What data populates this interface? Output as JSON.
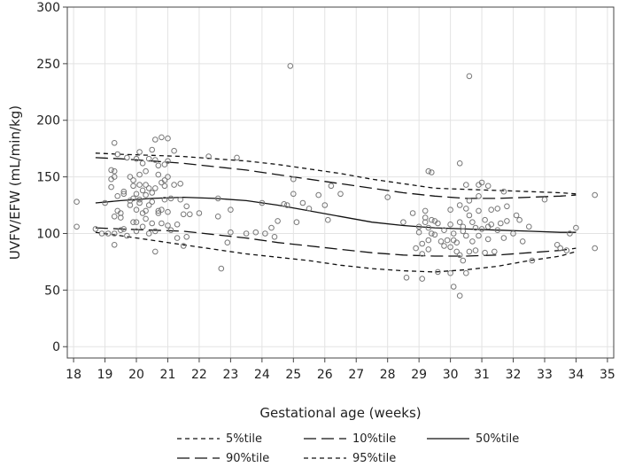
{
  "chart_data": {
    "type": "scatter",
    "title": "",
    "xlabel": "Gestational age (weeks)",
    "ylabel": "UVFV/EFW (mL/min/kg)",
    "xlim": [
      17.8,
      35.2
    ],
    "ylim": [
      -10,
      300
    ],
    "xticks": [
      18,
      19,
      20,
      21,
      22,
      23,
      24,
      25,
      26,
      27,
      28,
      29,
      30,
      31,
      32,
      33,
      34,
      35
    ],
    "yticks": [
      0,
      50,
      100,
      150,
      200,
      250,
      300
    ],
    "grid": true,
    "legend": [
      {
        "label": "5%tile",
        "dash": "short"
      },
      {
        "label": "10%tile",
        "dash": "long"
      },
      {
        "label": "50%tile",
        "dash": "solid"
      },
      {
        "label": "90%tile",
        "dash": "long"
      },
      {
        "label": "95%tile",
        "dash": "short"
      }
    ],
    "centile_curves": [
      {
        "name": "5%tile",
        "dash": "short",
        "x": [
          18.7,
          19.5,
          20.5,
          21.5,
          22.5,
          23.5,
          24.5,
          25.5,
          26.5,
          27.5,
          28.5,
          29.5,
          30.5,
          31.5,
          32.5,
          33.5,
          34.0
        ],
        "y": [
          101,
          98,
          94,
          90,
          86,
          82,
          79,
          76,
          72,
          69,
          67,
          66,
          68,
          71,
          76,
          80,
          84
        ]
      },
      {
        "name": "10%tile",
        "dash": "long",
        "x": [
          18.7,
          19.5,
          20.5,
          21.5,
          22.5,
          23.5,
          24.5,
          25.5,
          26.5,
          27.5,
          28.5,
          29.5,
          30.5,
          31.5,
          32.5,
          33.5,
          34.0
        ],
        "y": [
          105,
          104,
          103,
          102,
          99,
          96,
          92,
          89,
          86,
          83,
          81,
          80,
          80,
          81,
          83,
          85,
          87
        ]
      },
      {
        "name": "50%tile",
        "dash": "solid",
        "x": [
          18.7,
          19.5,
          20.5,
          21.5,
          22.5,
          23.5,
          24.5,
          25.5,
          26.5,
          27.5,
          28.5,
          29.5,
          30.5,
          31.5,
          32.5,
          33.5,
          34.0
        ],
        "y": [
          127,
          129,
          131,
          132,
          131,
          129,
          125,
          120,
          115,
          110,
          107,
          105,
          104,
          103,
          102,
          101,
          101
        ]
      },
      {
        "name": "90%tile",
        "dash": "long",
        "x": [
          18.7,
          19.5,
          20.5,
          21.5,
          22.5,
          23.5,
          24.5,
          25.5,
          26.5,
          27.5,
          28.5,
          29.5,
          30.5,
          31.5,
          32.5,
          33.5,
          34.0
        ],
        "y": [
          167,
          166,
          164,
          162,
          159,
          156,
          152,
          148,
          144,
          140,
          136,
          133,
          131,
          131,
          132,
          133,
          134
        ]
      },
      {
        "name": "95%tile",
        "dash": "short",
        "x": [
          18.7,
          19.5,
          20.5,
          21.5,
          22.5,
          23.5,
          24.5,
          25.5,
          26.5,
          27.5,
          28.5,
          29.5,
          30.5,
          31.5,
          32.5,
          33.5,
          34.0
        ],
        "y": [
          171,
          170,
          169,
          168,
          166,
          164,
          161,
          157,
          153,
          148,
          144,
          140,
          139,
          138,
          137,
          136,
          135
        ]
      }
    ],
    "points": [
      [
        18.1,
        128
      ],
      [
        18.1,
        106
      ],
      [
        18.7,
        104
      ],
      [
        18.9,
        100
      ],
      [
        19.0,
        127
      ],
      [
        19.1,
        100
      ],
      [
        19.2,
        148
      ],
      [
        19.2,
        156
      ],
      [
        19.2,
        141
      ],
      [
        19.3,
        100
      ],
      [
        19.3,
        180
      ],
      [
        19.3,
        155
      ],
      [
        19.3,
        150
      ],
      [
        19.3,
        115
      ],
      [
        19.3,
        90
      ],
      [
        19.4,
        133
      ],
      [
        19.4,
        170
      ],
      [
        19.4,
        120
      ],
      [
        19.5,
        114
      ],
      [
        19.5,
        118
      ],
      [
        19.5,
        103
      ],
      [
        19.6,
        135
      ],
      [
        19.6,
        137
      ],
      [
        19.6,
        104
      ],
      [
        19.7,
        167
      ],
      [
        19.7,
        98
      ],
      [
        19.8,
        150
      ],
      [
        19.8,
        129
      ],
      [
        19.8,
        125
      ],
      [
        19.9,
        147
      ],
      [
        19.9,
        142
      ],
      [
        19.9,
        110
      ],
      [
        19.9,
        131
      ],
      [
        20.0,
        102
      ],
      [
        20.0,
        121
      ],
      [
        20.0,
        166
      ],
      [
        20.0,
        110
      ],
      [
        20.0,
        135
      ],
      [
        20.1,
        172
      ],
      [
        20.1,
        143
      ],
      [
        20.1,
        152
      ],
      [
        20.1,
        127
      ],
      [
        20.1,
        130
      ],
      [
        20.2,
        162
      ],
      [
        20.2,
        138
      ],
      [
        20.2,
        118
      ],
      [
        20.2,
        106
      ],
      [
        20.3,
        155
      ],
      [
        20.3,
        113
      ],
      [
        20.3,
        143
      ],
      [
        20.3,
        120
      ],
      [
        20.3,
        134
      ],
      [
        20.4,
        125
      ],
      [
        20.4,
        140
      ],
      [
        20.4,
        166
      ],
      [
        20.4,
        100
      ],
      [
        20.5,
        109
      ],
      [
        20.5,
        174
      ],
      [
        20.5,
        128
      ],
      [
        20.5,
        136
      ],
      [
        20.6,
        183
      ],
      [
        20.6,
        84
      ],
      [
        20.6,
        102
      ],
      [
        20.6,
        140
      ],
      [
        20.6,
        165
      ],
      [
        20.7,
        160
      ],
      [
        20.7,
        152
      ],
      [
        20.7,
        120
      ],
      [
        20.7,
        118
      ],
      [
        20.8,
        185
      ],
      [
        20.8,
        109
      ],
      [
        20.8,
        145
      ],
      [
        20.8,
        121
      ],
      [
        20.9,
        147
      ],
      [
        20.9,
        142
      ],
      [
        20.9,
        130
      ],
      [
        20.9,
        161
      ],
      [
        21.0,
        184
      ],
      [
        21.0,
        164
      ],
      [
        21.0,
        150
      ],
      [
        21.0,
        119
      ],
      [
        21.0,
        107
      ],
      [
        21.1,
        103
      ],
      [
        21.1,
        131
      ],
      [
        21.2,
        173
      ],
      [
        21.2,
        143
      ],
      [
        21.3,
        108
      ],
      [
        21.3,
        96
      ],
      [
        21.4,
        144
      ],
      [
        21.4,
        130
      ],
      [
        21.5,
        89
      ],
      [
        21.5,
        117
      ],
      [
        21.6,
        97
      ],
      [
        21.6,
        124
      ],
      [
        21.7,
        117
      ],
      [
        22.0,
        118
      ],
      [
        22.3,
        168
      ],
      [
        22.6,
        131
      ],
      [
        22.6,
        115
      ],
      [
        22.7,
        69
      ],
      [
        22.9,
        92
      ],
      [
        23.0,
        121
      ],
      [
        23.0,
        101
      ],
      [
        23.2,
        167
      ],
      [
        23.5,
        100
      ],
      [
        23.8,
        101
      ],
      [
        24.0,
        127
      ],
      [
        24.1,
        100
      ],
      [
        24.3,
        105
      ],
      [
        24.4,
        97
      ],
      [
        24.5,
        111
      ],
      [
        24.7,
        126
      ],
      [
        24.8,
        125
      ],
      [
        24.9,
        248
      ],
      [
        25.0,
        135
      ],
      [
        25.0,
        148
      ],
      [
        25.1,
        110
      ],
      [
        25.3,
        127
      ],
      [
        25.5,
        122
      ],
      [
        25.8,
        134
      ],
      [
        26.0,
        125
      ],
      [
        26.1,
        112
      ],
      [
        26.2,
        142
      ],
      [
        26.5,
        135
      ],
      [
        28.0,
        132
      ],
      [
        28.5,
        110
      ],
      [
        28.6,
        61
      ],
      [
        28.8,
        118
      ],
      [
        28.9,
        87
      ],
      [
        29.0,
        101
      ],
      [
        29.0,
        106
      ],
      [
        29.1,
        91
      ],
      [
        29.1,
        60
      ],
      [
        29.1,
        82
      ],
      [
        29.2,
        120
      ],
      [
        29.2,
        114
      ],
      [
        29.2,
        110
      ],
      [
        29.3,
        155
      ],
      [
        29.3,
        105
      ],
      [
        29.3,
        94
      ],
      [
        29.3,
        86
      ],
      [
        29.4,
        154
      ],
      [
        29.4,
        112
      ],
      [
        29.4,
        100
      ],
      [
        29.5,
        111
      ],
      [
        29.5,
        99
      ],
      [
        29.6,
        66
      ],
      [
        29.6,
        109
      ],
      [
        29.7,
        93
      ],
      [
        29.8,
        89
      ],
      [
        29.8,
        103
      ],
      [
        29.9,
        94
      ],
      [
        30.0,
        121
      ],
      [
        30.0,
        108
      ],
      [
        30.0,
        88
      ],
      [
        30.0,
        65
      ],
      [
        30.1,
        53
      ],
      [
        30.1,
        100
      ],
      [
        30.1,
        94
      ],
      [
        30.2,
        92
      ],
      [
        30.2,
        84
      ],
      [
        30.3,
        110
      ],
      [
        30.3,
        81
      ],
      [
        30.3,
        45
      ],
      [
        30.3,
        162
      ],
      [
        30.3,
        125
      ],
      [
        30.4,
        76
      ],
      [
        30.4,
        106
      ],
      [
        30.4,
        102
      ],
      [
        30.5,
        98
      ],
      [
        30.5,
        122
      ],
      [
        30.5,
        143
      ],
      [
        30.5,
        65
      ],
      [
        30.6,
        239
      ],
      [
        30.6,
        129
      ],
      [
        30.6,
        116
      ],
      [
        30.6,
        84
      ],
      [
        30.7,
        110
      ],
      [
        30.7,
        93
      ],
      [
        30.8,
        85
      ],
      [
        30.8,
        105
      ],
      [
        30.9,
        143
      ],
      [
        30.9,
        120
      ],
      [
        30.9,
        98
      ],
      [
        30.9,
        133
      ],
      [
        31.0,
        145
      ],
      [
        31.0,
        104
      ],
      [
        31.1,
        112
      ],
      [
        31.1,
        83
      ],
      [
        31.2,
        95
      ],
      [
        31.2,
        142
      ],
      [
        31.2,
        106
      ],
      [
        31.3,
        121
      ],
      [
        31.3,
        108
      ],
      [
        31.4,
        84
      ],
      [
        31.5,
        122
      ],
      [
        31.5,
        103
      ],
      [
        31.6,
        109
      ],
      [
        31.7,
        137
      ],
      [
        31.7,
        96
      ],
      [
        31.8,
        124
      ],
      [
        31.8,
        111
      ],
      [
        32.0,
        100
      ],
      [
        32.1,
        116
      ],
      [
        32.2,
        112
      ],
      [
        32.3,
        93
      ],
      [
        32.5,
        106
      ],
      [
        32.6,
        76
      ],
      [
        33.0,
        130
      ],
      [
        33.4,
        90
      ],
      [
        33.5,
        87
      ],
      [
        33.7,
        85
      ],
      [
        33.8,
        100
      ],
      [
        34.0,
        105
      ],
      [
        34.6,
        134
      ],
      [
        34.6,
        87
      ]
    ]
  }
}
